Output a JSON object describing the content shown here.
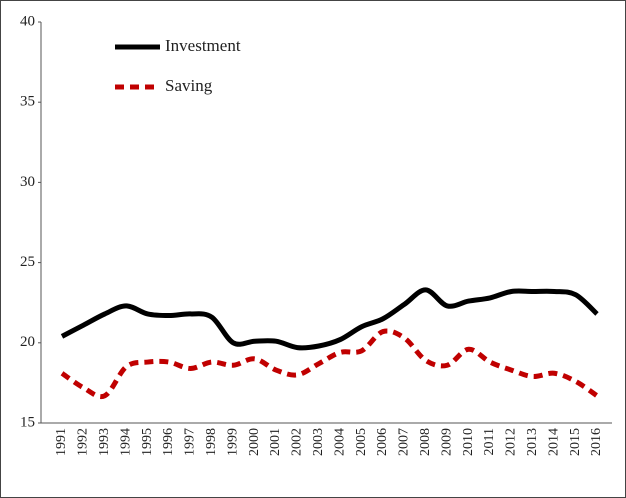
{
  "chart_data": {
    "type": "line",
    "x": [
      "1991",
      "1992",
      "1993",
      "1994",
      "1995",
      "1996",
      "1997",
      "1998",
      "1999",
      "2000",
      "2001",
      "2002",
      "2003",
      "2004",
      "2005",
      "2006",
      "2007",
      "2008",
      "2009",
      "2010",
      "2011",
      "2012",
      "2013",
      "2014",
      "2015",
      "2016"
    ],
    "series": [
      {
        "name": "Investment",
        "color": "#000000",
        "dash": "solid",
        "values": [
          20.4,
          21.1,
          21.8,
          22.3,
          21.8,
          21.7,
          21.8,
          21.6,
          20.0,
          20.1,
          20.1,
          19.7,
          19.8,
          20.2,
          21.0,
          21.5,
          22.4,
          23.3,
          22.3,
          22.6,
          22.8,
          23.2,
          23.2,
          23.2,
          23.0,
          21.8
        ]
      },
      {
        "name": "Saving",
        "color": "#c00000",
        "dash": "dashed",
        "values": [
          18.1,
          17.2,
          16.7,
          18.5,
          18.8,
          18.8,
          18.4,
          18.8,
          18.6,
          19.0,
          18.3,
          18.0,
          18.7,
          19.4,
          19.5,
          20.7,
          20.3,
          18.9,
          18.6,
          19.6,
          18.8,
          18.3,
          17.9,
          18.1,
          17.6,
          16.7
        ]
      }
    ],
    "ylim": [
      15,
      40
    ],
    "yticks": [
      15,
      20,
      25,
      30,
      35,
      40
    ],
    "grid": false,
    "legend": "top-left"
  }
}
